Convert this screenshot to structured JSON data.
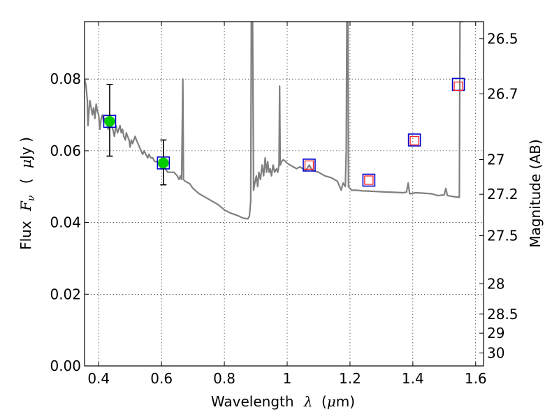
{
  "chart_data": {
    "type": "scatter",
    "xlabel": "Wavelength",
    "xlabel_symbol": "λ",
    "xlabel_unit_open": "(",
    "xlabel_unit_mu": "μ",
    "xlabel_unit_rest": "m)",
    "ylabel_prefix": "Flux",
    "ylabel_symbol": "F",
    "ylabel_subscript": "ν",
    "ylabel_unit_open": "(",
    "ylabel_unit_mu": "μ",
    "ylabel_unit_rest": "Jy )",
    "y2label": "Magnitude (AB)",
    "xlim": [
      0.355,
      1.625
    ],
    "ylim": [
      0.0,
      0.096
    ],
    "grid": true,
    "xticks": [
      {
        "v": 0.4,
        "label": "0.4"
      },
      {
        "v": 0.6,
        "label": "0.6"
      },
      {
        "v": 0.8,
        "label": "0.8"
      },
      {
        "v": 1.0,
        "label": "1"
      },
      {
        "v": 1.2,
        "label": "1.2"
      },
      {
        "v": 1.4,
        "label": "1.4"
      },
      {
        "v": 1.6,
        "label": "1.6"
      }
    ],
    "yticks": [
      {
        "v": 0.0,
        "label": "0.00"
      },
      {
        "v": 0.02,
        "label": "0.02"
      },
      {
        "v": 0.04,
        "label": "0.04"
      },
      {
        "v": 0.06,
        "label": "0.06"
      },
      {
        "v": 0.08,
        "label": "0.08"
      }
    ],
    "y2ticks": [
      {
        "v": 26.5,
        "label": "26.5"
      },
      {
        "v": 26.7,
        "label": "26.7"
      },
      {
        "v": 27.0,
        "label": "27"
      },
      {
        "v": 27.2,
        "label": "27.2"
      },
      {
        "v": 27.5,
        "label": "27.5"
      },
      {
        "v": 28.0,
        "label": "28"
      },
      {
        "v": 28.5,
        "label": "28.5"
      },
      {
        "v": 29.0,
        "label": "29"
      },
      {
        "v": 30.0,
        "label": "30"
      }
    ],
    "series": [
      {
        "kind": "model_spectrum",
        "color": "#808080",
        "points": [
          [
            0.355,
            0.08
          ],
          [
            0.36,
            0.078
          ],
          [
            0.364,
            0.074
          ],
          [
            0.366,
            0.067
          ],
          [
            0.369,
            0.071
          ],
          [
            0.372,
            0.074
          ],
          [
            0.376,
            0.072
          ],
          [
            0.38,
            0.07
          ],
          [
            0.384,
            0.072
          ],
          [
            0.388,
            0.069
          ],
          [
            0.392,
            0.073
          ],
          [
            0.396,
            0.071
          ],
          [
            0.4,
            0.07
          ],
          [
            0.404,
            0.066
          ],
          [
            0.408,
            0.069
          ],
          [
            0.412,
            0.07
          ],
          [
            0.416,
            0.068
          ],
          [
            0.42,
            0.069
          ],
          [
            0.425,
            0.068
          ],
          [
            0.43,
            0.066
          ],
          [
            0.436,
            0.068
          ],
          [
            0.44,
            0.067
          ],
          [
            0.445,
            0.066
          ],
          [
            0.45,
            0.064
          ],
          [
            0.455,
            0.067
          ],
          [
            0.46,
            0.065
          ],
          [
            0.464,
            0.066
          ],
          [
            0.468,
            0.067
          ],
          [
            0.472,
            0.065
          ],
          [
            0.476,
            0.066
          ],
          [
            0.48,
            0.064
          ],
          [
            0.485,
            0.063
          ],
          [
            0.488,
            0.065
          ],
          [
            0.492,
            0.064
          ],
          [
            0.497,
            0.063
          ],
          [
            0.5,
            0.061
          ],
          [
            0.504,
            0.063
          ],
          [
            0.508,
            0.062
          ],
          [
            0.512,
            0.063
          ],
          [
            0.516,
            0.064
          ],
          [
            0.52,
            0.063
          ],
          [
            0.525,
            0.062
          ],
          [
            0.53,
            0.061
          ],
          [
            0.535,
            0.06
          ],
          [
            0.54,
            0.059
          ],
          [
            0.545,
            0.06
          ],
          [
            0.55,
            0.059
          ],
          [
            0.556,
            0.058
          ],
          [
            0.56,
            0.059
          ],
          [
            0.566,
            0.058
          ],
          [
            0.572,
            0.058
          ],
          [
            0.578,
            0.057
          ],
          [
            0.585,
            0.057
          ],
          [
            0.592,
            0.056
          ],
          [
            0.6,
            0.055
          ],
          [
            0.606,
            0.056
          ],
          [
            0.612,
            0.055
          ],
          [
            0.62,
            0.054
          ],
          [
            0.63,
            0.054
          ],
          [
            0.64,
            0.054
          ],
          [
            0.65,
            0.053
          ],
          [
            0.656,
            0.052
          ],
          [
            0.66,
            0.053
          ],
          [
            0.664,
            0.052
          ],
          [
            0.668,
            0.08
          ],
          [
            0.67,
            0.052
          ],
          [
            0.675,
            0.0515
          ],
          [
            0.69,
            0.0508
          ],
          [
            0.7,
            0.0495
          ],
          [
            0.72,
            0.048
          ],
          [
            0.74,
            0.047
          ],
          [
            0.76,
            0.046
          ],
          [
            0.78,
            0.045
          ],
          [
            0.8,
            0.0435
          ],
          [
            0.82,
            0.0426
          ],
          [
            0.84,
            0.042
          ],
          [
            0.86,
            0.0412
          ],
          [
            0.875,
            0.041
          ],
          [
            0.88,
            0.0418
          ],
          [
            0.884,
            0.046
          ],
          [
            0.886,
            0.096
          ],
          [
            0.89,
            0.096
          ],
          [
            0.893,
            0.049
          ],
          [
            0.897,
            0.051
          ],
          [
            0.902,
            0.053
          ],
          [
            0.906,
            0.05
          ],
          [
            0.91,
            0.054
          ],
          [
            0.915,
            0.052
          ],
          [
            0.92,
            0.056
          ],
          [
            0.925,
            0.053
          ],
          [
            0.93,
            0.058
          ],
          [
            0.934,
            0.054
          ],
          [
            0.938,
            0.057
          ],
          [
            0.942,
            0.054
          ],
          [
            0.946,
            0.055
          ],
          [
            0.95,
            0.053
          ],
          [
            0.955,
            0.056
          ],
          [
            0.96,
            0.054
          ],
          [
            0.966,
            0.055
          ],
          [
            0.97,
            0.054
          ],
          [
            0.974,
            0.056
          ],
          [
            0.976,
            0.078
          ],
          [
            0.978,
            0.056
          ],
          [
            0.982,
            0.057
          ],
          [
            0.988,
            0.0575
          ],
          [
            0.995,
            0.057
          ],
          [
            1.0,
            0.0565
          ],
          [
            1.01,
            0.056
          ],
          [
            1.02,
            0.0555
          ],
          [
            1.03,
            0.055
          ],
          [
            1.04,
            0.0555
          ],
          [
            1.05,
            0.055
          ],
          [
            1.06,
            0.0545
          ],
          [
            1.07,
            0.056
          ],
          [
            1.08,
            0.0545
          ],
          [
            1.1,
            0.054
          ],
          [
            1.12,
            0.053
          ],
          [
            1.14,
            0.0525
          ],
          [
            1.16,
            0.0515
          ],
          [
            1.172,
            0.049
          ],
          [
            1.178,
            0.051
          ],
          [
            1.185,
            0.05
          ],
          [
            1.188,
            0.06
          ],
          [
            1.19,
            0.096
          ],
          [
            1.193,
            0.096
          ],
          [
            1.195,
            0.05
          ],
          [
            1.205,
            0.049
          ],
          [
            1.22,
            0.049
          ],
          [
            1.24,
            0.0488
          ],
          [
            1.27,
            0.0487
          ],
          [
            1.29,
            0.0486
          ],
          [
            1.31,
            0.0485
          ],
          [
            1.34,
            0.0484
          ],
          [
            1.37,
            0.0483
          ],
          [
            1.38,
            0.0485
          ],
          [
            1.385,
            0.051
          ],
          [
            1.39,
            0.048
          ],
          [
            1.41,
            0.0483
          ],
          [
            1.43,
            0.0482
          ],
          [
            1.46,
            0.048
          ],
          [
            1.48,
            0.0475
          ],
          [
            1.5,
            0.0477
          ],
          [
            1.505,
            0.0495
          ],
          [
            1.51,
            0.0475
          ],
          [
            1.53,
            0.0472
          ],
          [
            1.548,
            0.047
          ],
          [
            1.55,
            0.096
          ],
          [
            1.554,
            0.096
          ],
          [
            1.56,
            0.096
          ]
        ]
      },
      {
        "kind": "observed_flux",
        "marker": "filled-circle",
        "color": "#00cc00",
        "points": [
          {
            "x": 0.435,
            "y": 0.0682,
            "yerr_low": 0.0585,
            "yerr_high": 0.0785
          },
          {
            "x": 0.606,
            "y": 0.0566,
            "yerr_low": 0.0505,
            "yerr_high": 0.063
          }
        ]
      },
      {
        "kind": "model_photometry",
        "marker": "open-square",
        "color": "#0000cc",
        "points": [
          [
            0.435,
            0.0682
          ],
          [
            0.606,
            0.0566
          ],
          [
            1.07,
            0.056
          ],
          [
            1.26,
            0.0518
          ],
          [
            1.405,
            0.063
          ],
          [
            1.545,
            0.0785
          ]
        ]
      },
      {
        "kind": "upper_limit_photometry",
        "marker": "open-square",
        "color": "#ff2222",
        "points": [
          [
            1.07,
            0.056
          ],
          [
            1.26,
            0.0518
          ],
          [
            1.405,
            0.0628
          ],
          [
            1.545,
            0.078
          ]
        ]
      }
    ]
  }
}
